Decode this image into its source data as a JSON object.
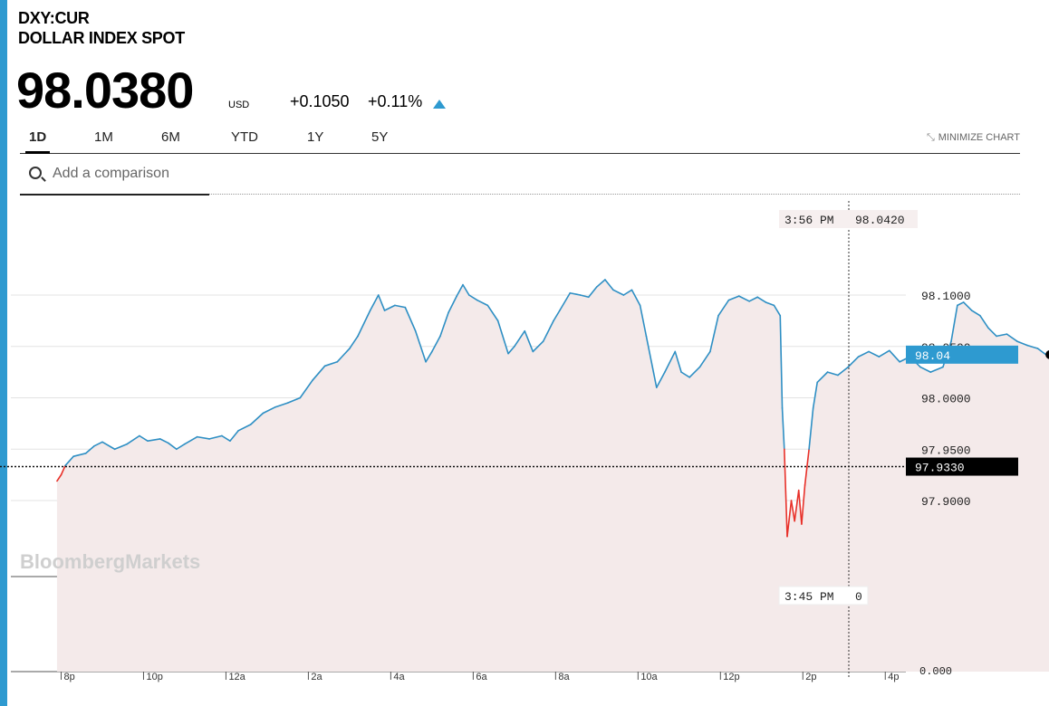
{
  "header": {
    "ticker": "DXY:CUR",
    "name": "DOLLAR INDEX SPOT",
    "price": "98.0380",
    "currency": "USD",
    "change": "+0.1050",
    "change_pct": "+0.11%",
    "direction_icon": "triangle-up-icon"
  },
  "range_tabs": [
    {
      "label": "1D",
      "active": true
    },
    {
      "label": "1M",
      "active": false
    },
    {
      "label": "6M",
      "active": false
    },
    {
      "label": "YTD",
      "active": false
    },
    {
      "label": "1Y",
      "active": false
    },
    {
      "label": "5Y",
      "active": false
    }
  ],
  "minimize": {
    "label": "MINIMIZE CHART",
    "icon": "compress-arrows-icon"
  },
  "search": {
    "placeholder": "Add a comparison",
    "icon": "search-icon"
  },
  "watermark": "BloombergMarkets",
  "colors": {
    "accent": "#2e9ad0",
    "line_up": "#2e8fc4",
    "line_down": "#e8312a",
    "area_fill": "#f4eaea",
    "last_price_label": "#2e9ad0"
  },
  "chart_data": {
    "type": "line",
    "title": "",
    "xlabel": "",
    "ylabel": "",
    "ylim": [
      97.85,
      98.13
    ],
    "y_ticks": [
      "98.1000",
      "98.0500",
      "98.0000",
      "97.9500",
      "97.9000"
    ],
    "x_ticks": [
      "8p",
      "10p",
      "12a",
      "2a",
      "4a",
      "6a",
      "8a",
      "10a",
      "12p",
      "2p",
      "4p"
    ],
    "x_tick_hours": [
      20,
      22,
      24,
      26,
      28,
      30,
      32,
      34,
      36,
      38,
      40
    ],
    "x_range_hours": [
      19.0,
      40.5
    ],
    "previous_close": 97.933,
    "previous_close_label": "97.9330",
    "last_value_label": "98.04",
    "hover_top": {
      "time": "3:56 PM",
      "value": "98.0420"
    },
    "volume_panel": {
      "time": "3:45 PM",
      "value": "0",
      "axis_label": "0.000"
    },
    "grid": true,
    "legend": "none",
    "series": [
      {
        "points": [
          [
            19.9,
            97.919
          ],
          [
            20.0,
            97.925
          ],
          [
            20.1,
            97.934
          ],
          [
            20.3,
            97.943
          ],
          [
            20.6,
            97.946
          ],
          [
            20.8,
            97.953
          ],
          [
            21.0,
            97.957
          ],
          [
            21.3,
            97.95
          ],
          [
            21.6,
            97.955
          ],
          [
            21.9,
            97.963
          ],
          [
            22.1,
            97.958
          ],
          [
            22.4,
            97.96
          ],
          [
            22.6,
            97.956
          ],
          [
            22.8,
            97.95
          ],
          [
            23.0,
            97.955
          ],
          [
            23.3,
            97.962
          ],
          [
            23.6,
            97.96
          ],
          [
            23.9,
            97.963
          ],
          [
            24.1,
            97.958
          ],
          [
            24.3,
            97.968
          ],
          [
            24.6,
            97.974
          ],
          [
            24.9,
            97.985
          ],
          [
            25.2,
            97.991
          ],
          [
            25.5,
            97.995
          ],
          [
            25.8,
            98.0
          ],
          [
            26.1,
            98.017
          ],
          [
            26.4,
            98.031
          ],
          [
            26.7,
            98.035
          ],
          [
            27.0,
            98.048
          ],
          [
            27.2,
            98.06
          ],
          [
            27.5,
            98.085
          ],
          [
            27.7,
            98.1
          ],
          [
            27.85,
            98.085
          ],
          [
            28.1,
            98.09
          ],
          [
            28.35,
            98.088
          ],
          [
            28.6,
            98.065
          ],
          [
            28.85,
            98.035
          ],
          [
            29.0,
            98.045
          ],
          [
            29.2,
            98.06
          ],
          [
            29.4,
            98.083
          ],
          [
            29.6,
            98.099
          ],
          [
            29.75,
            98.11
          ],
          [
            29.9,
            98.1
          ],
          [
            30.1,
            98.095
          ],
          [
            30.35,
            98.09
          ],
          [
            30.6,
            98.075
          ],
          [
            30.85,
            98.043
          ],
          [
            31.0,
            98.05
          ],
          [
            31.25,
            98.065
          ],
          [
            31.45,
            98.045
          ],
          [
            31.7,
            98.055
          ],
          [
            31.95,
            98.075
          ],
          [
            32.1,
            98.085
          ],
          [
            32.35,
            98.102
          ],
          [
            32.6,
            98.1
          ],
          [
            32.8,
            98.098
          ],
          [
            33.0,
            98.108
          ],
          [
            33.2,
            98.115
          ],
          [
            33.4,
            98.105
          ],
          [
            33.65,
            98.1
          ],
          [
            33.85,
            98.105
          ],
          [
            34.05,
            98.09
          ],
          [
            34.2,
            98.06
          ],
          [
            34.35,
            98.03
          ],
          [
            34.45,
            98.01
          ],
          [
            34.65,
            98.025
          ],
          [
            34.9,
            98.045
          ],
          [
            35.05,
            98.025
          ],
          [
            35.25,
            98.02
          ],
          [
            35.5,
            98.03
          ],
          [
            35.75,
            98.045
          ],
          [
            35.95,
            98.08
          ],
          [
            36.2,
            98.095
          ],
          [
            36.45,
            98.099
          ],
          [
            36.7,
            98.094
          ],
          [
            36.9,
            98.098
          ],
          [
            37.1,
            98.093
          ],
          [
            37.3,
            98.09
          ],
          [
            37.45,
            98.08
          ],
          [
            37.5,
            97.99
          ],
          [
            37.55,
            97.95
          ],
          [
            37.62,
            97.865
          ],
          [
            37.72,
            97.9
          ],
          [
            37.8,
            97.88
          ],
          [
            37.9,
            97.91
          ],
          [
            37.97,
            97.877
          ],
          [
            38.05,
            97.915
          ],
          [
            38.15,
            97.95
          ],
          [
            38.25,
            97.99
          ],
          [
            38.35,
            98.015
          ],
          [
            38.6,
            98.025
          ],
          [
            38.85,
            98.022
          ],
          [
            39.1,
            98.03
          ],
          [
            39.35,
            98.04
          ],
          [
            39.6,
            98.045
          ],
          [
            39.85,
            98.04
          ],
          [
            40.1,
            98.046
          ],
          [
            40.35,
            98.035
          ],
          [
            40.6,
            98.04
          ],
          [
            40.85,
            98.03
          ],
          [
            41.1,
            98.025
          ],
          [
            41.4,
            98.03
          ],
          [
            41.6,
            98.055
          ],
          [
            41.75,
            98.09
          ],
          [
            41.9,
            98.093
          ],
          [
            42.1,
            98.085
          ],
          [
            42.3,
            98.08
          ],
          [
            42.5,
            98.068
          ],
          [
            42.7,
            98.06
          ],
          [
            42.95,
            98.062
          ],
          [
            43.2,
            98.055
          ],
          [
            43.45,
            98.051
          ],
          [
            43.7,
            98.048
          ],
          [
            43.9,
            98.042
          ],
          [
            44.0,
            98.042
          ]
        ]
      }
    ]
  }
}
